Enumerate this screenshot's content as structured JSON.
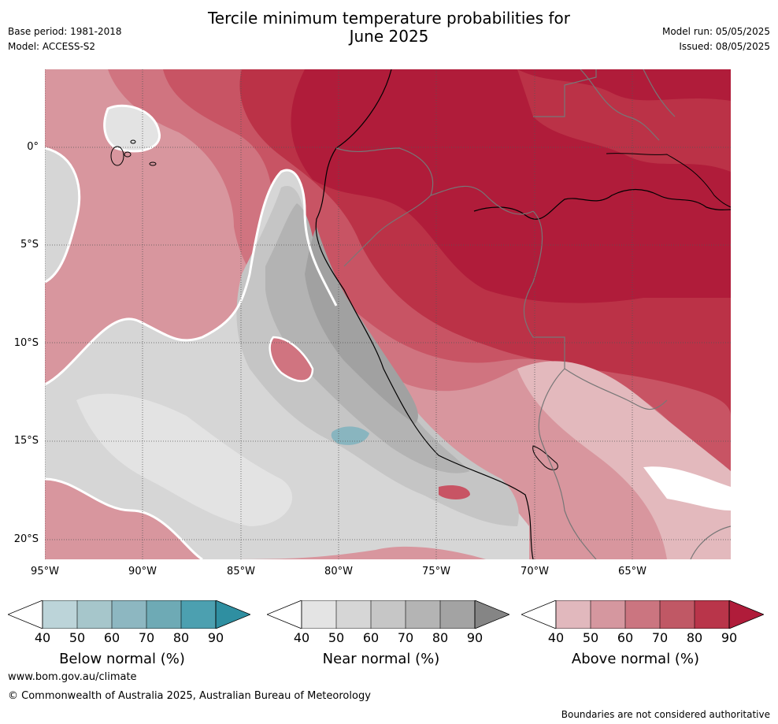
{
  "header": {
    "title_line1": "Tercile minimum temperature probabilities for",
    "title_line2": "June 2025",
    "base_period": "Base period: 1981-2018",
    "model": "Model: ACCESS-S2",
    "model_run": "Model run: 05/05/2025",
    "issued": "Issued: 08/05/2025"
  },
  "map": {
    "lat_labels": [
      "0°",
      "5°S",
      "10°S",
      "15°S",
      "20°S"
    ],
    "lon_labels": [
      "95°W",
      "90°W",
      "85°W",
      "80°W",
      "75°W",
      "70°W",
      "65°W"
    ],
    "region": "Western South America and eastern Pacific",
    "colors": {
      "above_90": "#b01c3a",
      "above_80": "#bb3247",
      "above_70": "#c85464",
      "above_60": "#d07480",
      "above_50": "#d8969e",
      "above_40": "#e3b9bd",
      "near_40": "#e3e3e3",
      "near_50": "#d6d6d6",
      "near_60": "#c5c5c5",
      "near_70": "#b3b3b3",
      "near_80": "#a1a1a1",
      "below_40": "#b9d3d8",
      "below_50": "#a5c6cc",
      "below_60": "#89b5bf",
      "below_70": "#6daab5",
      "below_80": "#4aa0af",
      "below_90": "#2e8fa0"
    }
  },
  "colorbars": [
    {
      "title": "Below normal (%)",
      "ticks": [
        "40",
        "50",
        "60",
        "70",
        "80",
        "90"
      ],
      "colors": [
        "#ffffff",
        "#bcd4d9",
        "#a6c6cb",
        "#8db7c1",
        "#6eaab5",
        "#4ca0b0",
        "#2f8fa1"
      ]
    },
    {
      "title": "Near normal (%)",
      "ticks": [
        "40",
        "50",
        "60",
        "70",
        "80",
        "90"
      ],
      "colors": [
        "#ffffff",
        "#e4e4e4",
        "#d6d6d6",
        "#c6c6c6",
        "#b4b4b4",
        "#a3a3a3",
        "#858585"
      ]
    },
    {
      "title": "Above normal (%)",
      "ticks": [
        "40",
        "50",
        "60",
        "70",
        "80",
        "90"
      ],
      "colors": [
        "#ffffff",
        "#e1b8bd",
        "#d5979f",
        "#cb7580",
        "#c05865",
        "#b9354a",
        "#b01c3a"
      ]
    }
  ],
  "footer": {
    "website": "www.bom.gov.au/climate",
    "copyright": "© Commonwealth of Australia 2025, Australian Bureau of Meteorology",
    "disclaimer": "Boundaries are not considered authoritative"
  }
}
